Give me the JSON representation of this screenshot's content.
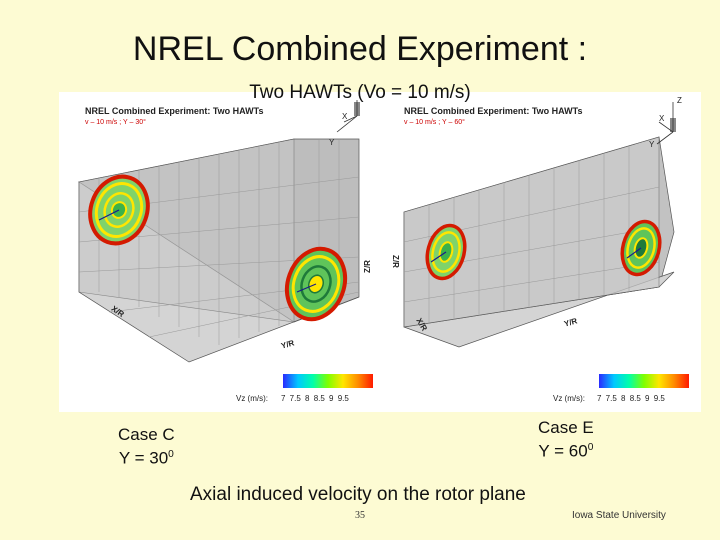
{
  "slide": {
    "title": "NREL Combined Experiment :",
    "subtitle": "Two HAWTs (Vo = 10 m/s)",
    "caption": "Axial induced velocity on the rotor plane",
    "page_number": "35",
    "footer": "Iowa State University"
  },
  "panels": [
    {
      "title": "NREL Combined Experiment: Two HAWTs",
      "sub": "v – 10 m/s ; Y – 30°",
      "case": "Case C",
      "yaw": "Y = 30",
      "yaw_sup": "0",
      "legend_label": "Vz (m/s):",
      "legend_ticks": "7 7.5 8 8.5 9 9.5"
    },
    {
      "title": "NREL Combined Experiment: Two HAWTs",
      "sub": "v – 10 m/s ; Y – 60°",
      "case": "Case E",
      "yaw": "Y = 60",
      "yaw_sup": "0",
      "legend_label": "Vz (m/s):",
      "legend_ticks": "7 7.5 8 8.5 9 9.5"
    }
  ],
  "axes": {
    "x": "X/R",
    "y": "Y/R",
    "z": "Z/R",
    "triad_x": "X",
    "triad_y": "Y",
    "triad_z": "Z"
  }
}
